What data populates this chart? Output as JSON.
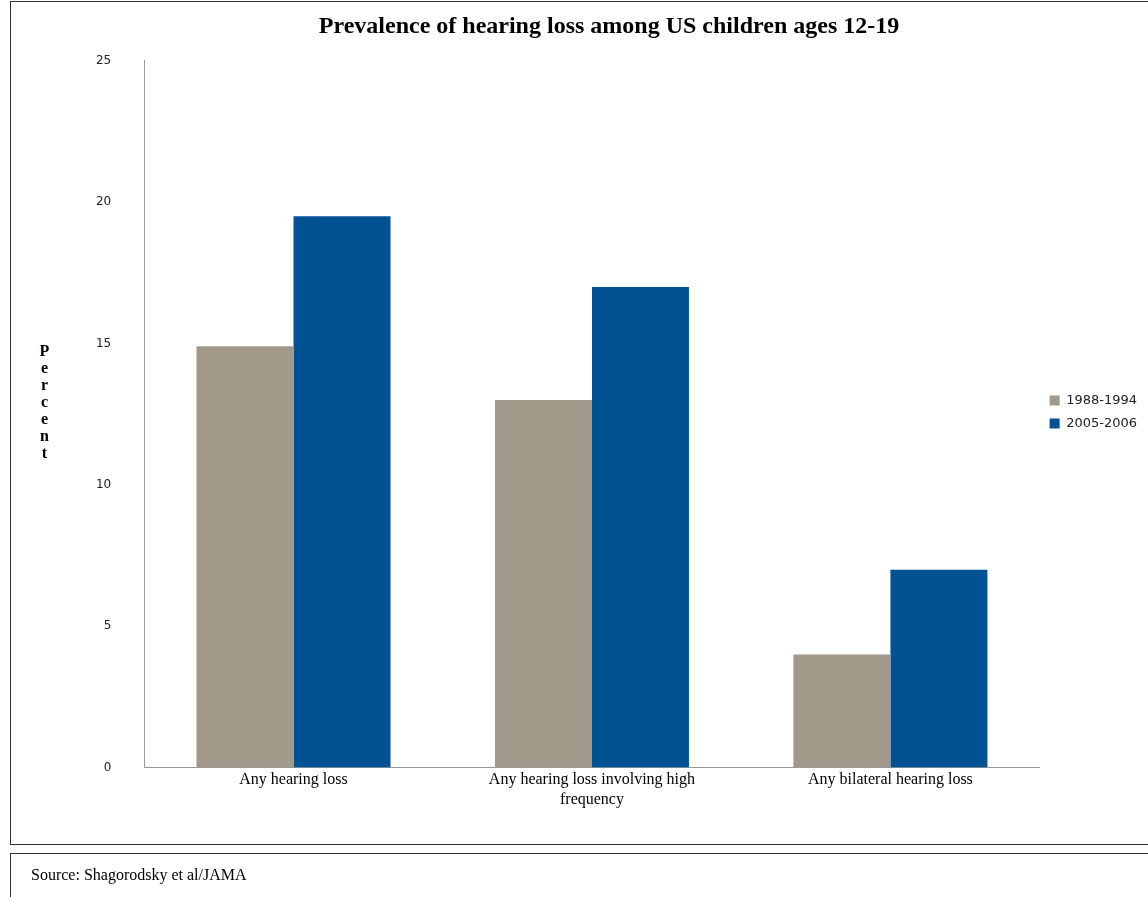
{
  "chart_data": {
    "type": "bar",
    "title": "Prevalence of hearing loss among US children ages 12-19",
    "ylabel": "Percent",
    "categories": [
      "Any hearing loss",
      "Any hearing loss involving high frequency",
      "Any bilateral hearing loss"
    ],
    "series": [
      {
        "name": "1988-1994",
        "color": "#a2998a",
        "values": [
          14.9,
          13.0,
          4.0
        ]
      },
      {
        "name": "2005-2006",
        "color": "#005293",
        "values": [
          19.5,
          17.0,
          7.0
        ]
      }
    ],
    "ylim": [
      0,
      25
    ],
    "yticks": [
      0,
      5,
      10,
      15,
      20,
      25
    ],
    "grid": false,
    "legend": "right",
    "annotations": [
      "Source: Shagorodsky et al/JAMA"
    ]
  }
}
